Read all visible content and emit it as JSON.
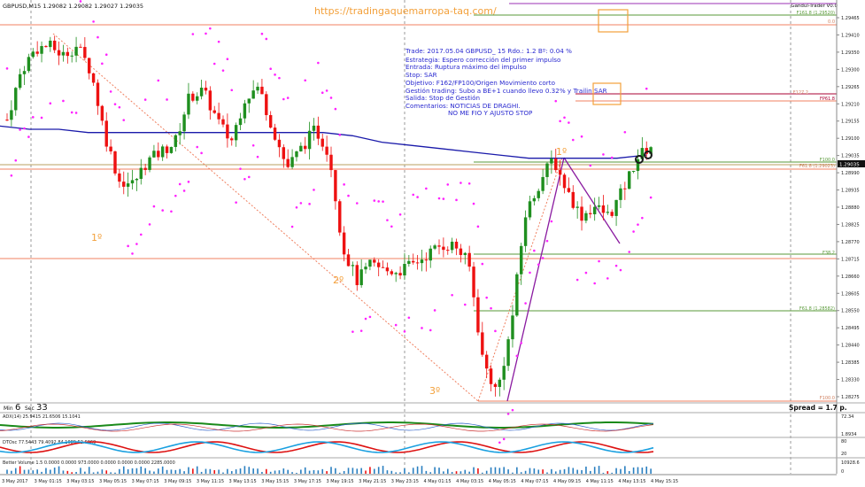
{
  "symbol_line": {
    "symbol": "GBPUSD,M15",
    "ohlc": "1.29082 1.29082 1.29027 1.29035"
  },
  "website": "https://tradingaquemarropa-taq.com/",
  "panel_label": "Gandul-Trader V0.0",
  "timer": {
    "min_label": "Min",
    "min": "6",
    "sec_label": "Sec",
    "sec": "33"
  },
  "spread": "Spread = 1.7 p.",
  "current_price": "1.29035",
  "notes": [
    "Trade: 2017.05.04 GBPUSD_ 15  Rdo.: 1.2  Bº: 0.04 %",
    "Estrategia: Espero corrección del primer impulso",
    "Entrada: Ruptura máximo del impulso",
    "Stop: SAR",
    "Objetivo: F162/FP100/Origen Movimiento corto",
    "Gestión trading: Subo a BE+1 cuando llevo 0.32% y Trailin SAR",
    "Salida: Stop de Gestión",
    "Comentarios: NOTICIAS DE DRAGHI.",
    "NO ME FIO Y AJUSTO STOP"
  ],
  "wave_labels": [
    "1º",
    "2º",
    "3º",
    "1º"
  ],
  "fib_labels": [
    "F161.8 (1.29520)",
    "0.0",
    "F127.2",
    "FP61.8",
    "F100.0",
    "F61.8 (1.29023)",
    "F38.2",
    "F61.8 (1.28582)",
    "F100.0"
  ],
  "indicators": {
    "adx": "ADX(14) 25.9415 21.6506 15.1041",
    "adx_scale": [
      "72.34",
      "1.8934"
    ],
    "dtosc": "DTOsc 77.5443 79.4092 84.1089 52.6069",
    "dtosc_scale": [
      "80",
      "20"
    ],
    "volume": "Better Volume 1.5 0.0000 0.0000 973.0000 0.0000 0.0000 0.0000 2285.0000",
    "volume_scale": [
      "10928.6",
      "0"
    ]
  },
  "chart_data": {
    "type": "candlestick",
    "title": "GBPUSD,M15",
    "y_ticks": [
      "1.29465",
      "1.29410",
      "1.29350",
      "1.29300",
      "1.29265",
      "1.29210",
      "1.29155",
      "1.29100",
      "1.29035",
      "1.28990",
      "1.28935",
      "1.28880",
      "1.28825",
      "1.28770",
      "1.28715",
      "1.28660",
      "1.28605",
      "1.28550",
      "1.28495",
      "1.28440",
      "1.28385",
      "1.28330",
      "1.28275"
    ],
    "ylim": [
      1.28275,
      1.295
    ],
    "x_ticks": [
      "3 May 2017",
      "3 May 01:15",
      "3 May 03:15",
      "3 May 05:15",
      "3 May 07:15",
      "3 May 09:15",
      "3 May 11:15",
      "3 May 13:15",
      "3 May 15:15",
      "3 May 17:15",
      "3 May 19:15",
      "3 May 21:15",
      "3 May 23:15",
      "4 May 01:15",
      "4 May 03:15",
      "4 May 05:15",
      "4 May 07:15",
      "4 May 09:15",
      "4 May 11:15",
      "4 May 13:15",
      "4 May 15:15"
    ],
    "price_path": [
      1.2915,
      1.293,
      1.2937,
      1.2938,
      1.2935,
      1.2938,
      1.293,
      1.291,
      1.2896,
      1.2895,
      1.2902,
      1.2905,
      1.2908,
      1.2922,
      1.2924,
      1.2915,
      1.2908,
      1.2922,
      1.2925,
      1.2912,
      1.29,
      1.2906,
      1.2912,
      1.2905,
      1.2875,
      1.2865,
      1.287,
      1.2868,
      1.2868,
      1.287,
      1.2873,
      1.2876,
      1.2876,
      1.287,
      1.284,
      1.283,
      1.285,
      1.2885,
      1.2895,
      1.2903,
      1.2893,
      1.2885,
      1.2888,
      1.2885,
      1.2893,
      1.2903,
      1.2907
    ],
    "moving_average_path": [
      1.2913,
      1.2912,
      1.2912,
      1.2911,
      1.2911,
      1.2911,
      1.2911,
      1.2911,
      1.2911,
      1.2911,
      1.2911,
      1.2911,
      1.291,
      1.2908,
      1.2907,
      1.2906,
      1.2905,
      1.2904,
      1.2903,
      1.2903,
      1.2903,
      1.2903,
      1.2904
    ],
    "horizontal_levels": [
      1.29454,
      1.29433,
      1.29265,
      1.29255,
      1.29035,
      1.29023,
      1.2877,
      1.28582,
      1.283
    ]
  },
  "colors": {
    "bull": "#1f8f1f",
    "bear": "#ee1111",
    "sar": "#ff22ff",
    "ma": "#1a1aaa",
    "fib": "#f0a080",
    "fib_green": "#5a9a3a",
    "label_orange": "#f3a03a",
    "notes_blue": "#2a2ad0"
  }
}
